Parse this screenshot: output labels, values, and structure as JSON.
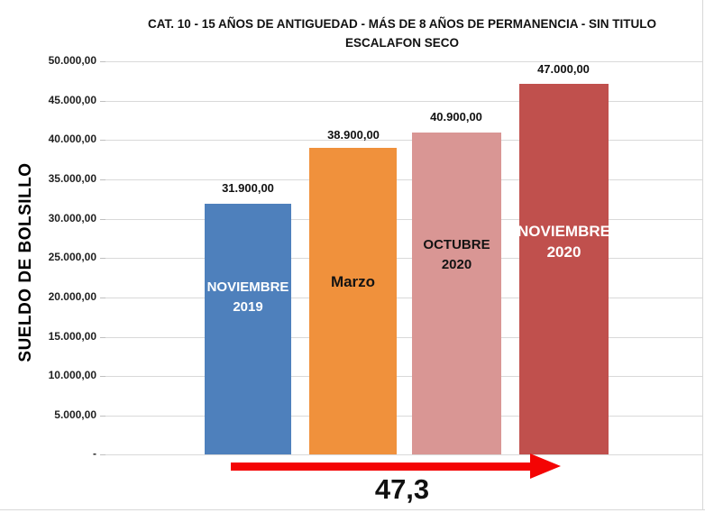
{
  "title": {
    "line1": "CAT. 10 - 15 AÑOS DE ANTIGUEDAD - MÁS DE 8 AÑOS DE PERMANENCIA - SIN TITULO",
    "line2": "ESCALAFON SECO"
  },
  "y_axis": {
    "label": "SUELDO DE BOLSILLO",
    "ticks": [
      "50.000,00",
      "45.000,00",
      "40.000,00",
      "35.000,00",
      "30.000,00",
      "25.000,00",
      "20.000,00",
      "15.000,00",
      "10.000,00",
      "5.000,00",
      "-"
    ]
  },
  "bars": [
    {
      "value_label": "31.900,00",
      "label_line1": "NOVIEMBRE",
      "label_line2": "2019",
      "color": "#4e80bc",
      "text_color": "#ffffff"
    },
    {
      "value_label": "38.900,00",
      "label_line1": "Marzo",
      "label_line2": "",
      "color": "#f0913c",
      "text_color": "#131313"
    },
    {
      "value_label": "40.900,00",
      "label_line1": "OCTUBRE",
      "label_line2": "2020",
      "color": "#d99694",
      "text_color": "#131313"
    },
    {
      "value_label": "47.000,00",
      "label_line1": "NOVIEMBRE",
      "label_line2": "2020",
      "color": "#c0504d",
      "text_color": "#ffffff"
    }
  ],
  "annotation": {
    "text": "47,3",
    "arrow_color": "#f40404"
  },
  "colors": {
    "gridline": "#d9d9d9",
    "border": "#d8d8d8"
  },
  "chart_data": {
    "type": "bar",
    "title": "CAT. 10 - 15 AÑOS DE ANTIGUEDAD - MÁS DE 8 AÑOS DE PERMANENCIA - SIN TITULO ESCALAFON SECO",
    "categories": [
      "NOVIEMBRE 2019",
      "Marzo",
      "OCTUBRE 2020",
      "NOVIEMBRE 2020"
    ],
    "values": [
      31900,
      38900,
      40900,
      47000
    ],
    "data_labels": [
      "31.900,00",
      "38.900,00",
      "40.900,00",
      "47.000,00"
    ],
    "bar_colors": [
      "#4e80bc",
      "#f0913c",
      "#d99694",
      "#c0504d"
    ],
    "xlabel": "",
    "ylabel": "SUELDO DE BOLSILLO",
    "ylim": [
      0,
      50000
    ],
    "ytick_step": 5000,
    "ytick_labels": [
      "-",
      "5.000,00",
      "10.000,00",
      "15.000,00",
      "20.000,00",
      "25.000,00",
      "30.000,00",
      "35.000,00",
      "40.000,00",
      "45.000,00",
      "50.000,00"
    ],
    "grid": true,
    "legend": "none",
    "annotation": {
      "text": "47,3",
      "shape": "red-right-arrow-below-bars"
    }
  }
}
